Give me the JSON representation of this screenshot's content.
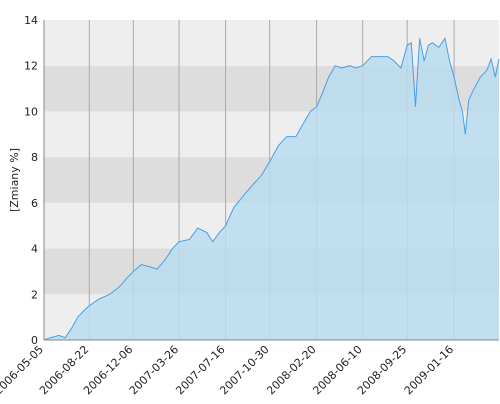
{
  "chart_data": {
    "type": "area",
    "y_label": "[Zmiany %]",
    "x": [
      "2006-05-05",
      "2006-05-20",
      "2006-06-10",
      "2006-06-25",
      "2006-07-10",
      "2006-07-25",
      "2006-08-10",
      "2006-08-22",
      "2006-09-15",
      "2006-10-10",
      "2006-11-01",
      "2006-11-20",
      "2006-12-06",
      "2006-12-25",
      "2007-01-15",
      "2007-02-01",
      "2007-02-20",
      "2007-03-10",
      "2007-03-26",
      "2007-04-20",
      "2007-05-10",
      "2007-06-01",
      "2007-06-15",
      "2007-07-01",
      "2007-07-16",
      "2007-08-05",
      "2007-09-01",
      "2007-09-20",
      "2007-10-10",
      "2007-10-30",
      "2007-11-20",
      "2007-12-10",
      "2008-01-01",
      "2008-01-20",
      "2008-02-05",
      "2008-02-20",
      "2008-03-05",
      "2008-03-20",
      "2008-04-05",
      "2008-04-20",
      "2008-05-10",
      "2008-05-25",
      "2008-06-10",
      "2008-07-01",
      "2008-07-20",
      "2008-08-10",
      "2008-08-25",
      "2008-09-10",
      "2008-09-25",
      "2008-10-05",
      "2008-10-15",
      "2008-10-25",
      "2008-11-05",
      "2008-11-15",
      "2008-11-25",
      "2008-12-10",
      "2008-12-25",
      "2009-01-05",
      "2009-01-16",
      "2009-01-28",
      "2009-02-05",
      "2009-02-12",
      "2009-02-20",
      "2009-03-05",
      "2009-03-20",
      "2009-04-05",
      "2009-04-15",
      "2009-04-25",
      "2009-05-04"
    ],
    "values": [
      0,
      0.1,
      0.2,
      0.1,
      0.5,
      1.0,
      1.3,
      1.5,
      1.8,
      2.0,
      2.3,
      2.7,
      3.0,
      3.3,
      3.2,
      3.1,
      3.5,
      4.0,
      4.3,
      4.4,
      4.9,
      4.7,
      4.3,
      4.7,
      5.0,
      5.8,
      6.4,
      6.8,
      7.2,
      7.8,
      8.5,
      8.9,
      8.9,
      9.5,
      10.0,
      10.2,
      10.8,
      11.5,
      12.0,
      11.9,
      12.0,
      11.9,
      12.0,
      12.4,
      12.4,
      12.4,
      12.2,
      11.9,
      12.9,
      13.0,
      10.2,
      13.2,
      12.2,
      12.9,
      13.0,
      12.8,
      13.2,
      12.2,
      11.5,
      10.5,
      10.0,
      9.0,
      10.5,
      11.0,
      11.5,
      11.8,
      12.3,
      11.5,
      12.3
    ],
    "color": "#4a9fe6",
    "fill": "#b8dcee",
    "xlim": [
      "2006-05-05",
      "2009-05-04"
    ],
    "xticks": [
      "2006-05-05",
      "2006-08-22",
      "2006-12-06",
      "2007-03-26",
      "2007-07-16",
      "2007-10-30",
      "2008-02-20",
      "2008-06-10",
      "2008-09-25",
      "2009-01-16"
    ],
    "ylim": [
      0,
      14
    ],
    "yticks": [
      0,
      2,
      4,
      6,
      8,
      10,
      12,
      14
    ],
    "band_colors": [
      "#eeeeee",
      "#dddddd"
    ],
    "grid": true
  }
}
